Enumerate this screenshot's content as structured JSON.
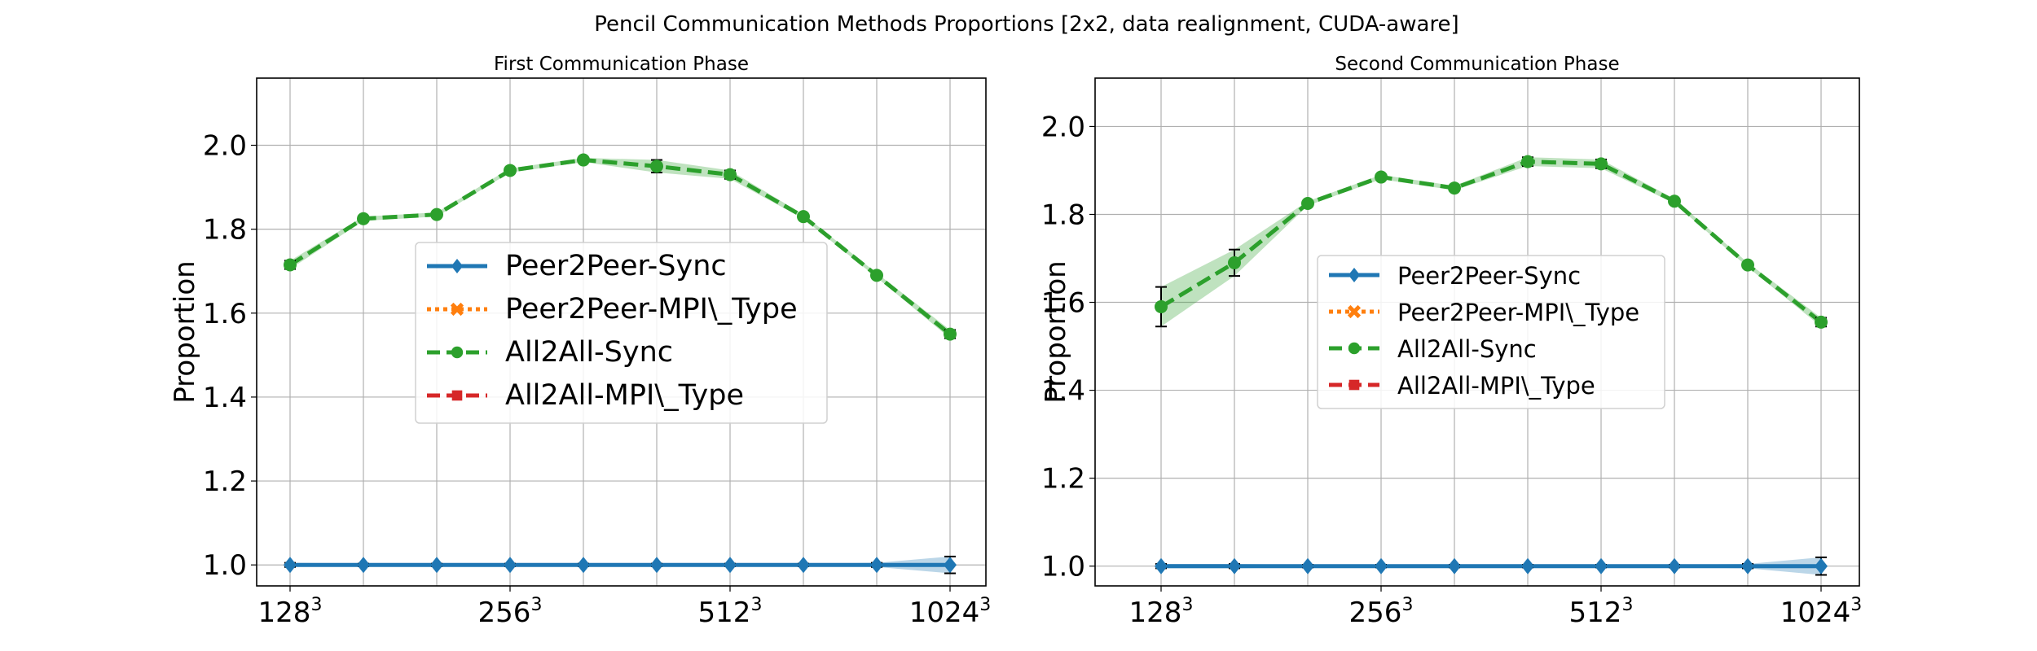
{
  "suptitle": "Pencil Communication Methods Proportions [2x2, data realignment, CUDA-aware]",
  "colors": {
    "peer2peer_sync": "#1f77b4",
    "peer2peer_mpi_type": "#ff7f0e",
    "all2all_sync": "#2ca02c",
    "all2all_mpi_type": "#d62728"
  },
  "chart_data": [
    {
      "type": "line",
      "title": "First Communication Phase",
      "ylabel": "Proportion",
      "xlabel": "",
      "ylim": [
        0.95,
        2.16
      ],
      "yticks": [
        "1.0",
        "1.2",
        "1.4",
        "1.6",
        "1.8",
        "2.0"
      ],
      "ytick_values": [
        1.0,
        1.2,
        1.4,
        1.6,
        1.8,
        2.0
      ],
      "grid": true,
      "legend_position": "center",
      "x_index": [
        0,
        1,
        2,
        3,
        4,
        5,
        6,
        7,
        8,
        9
      ],
      "xticks": [
        {
          "index": 0,
          "base": "128",
          "exp": "3"
        },
        {
          "index": 3,
          "base": "256",
          "exp": "3"
        },
        {
          "index": 6,
          "base": "512",
          "exp": "3"
        },
        {
          "index": 9,
          "base": "1024",
          "exp": "3"
        }
      ],
      "series": [
        {
          "name": "Peer2Peer-Sync",
          "key": "peer2peer_sync",
          "marker": "diamond",
          "dash": "solid",
          "values": [
            1.0,
            1.0,
            1.0,
            1.0,
            1.0,
            1.0,
            1.0,
            1.0,
            1.0,
            1.0
          ],
          "err": [
            0.005,
            0.003,
            0.003,
            0.003,
            0.003,
            0.003,
            0.003,
            0.003,
            0.005,
            0.02
          ]
        },
        {
          "name": "Peer2Peer-MPI\\_Type",
          "key": "peer2peer_mpi_type",
          "marker": "x",
          "dash": "dotted",
          "values": [],
          "err": []
        },
        {
          "name": "All2All-Sync",
          "key": "all2all_sync",
          "marker": "circle",
          "dash": "dashed",
          "values": [
            1.715,
            1.825,
            1.835,
            1.94,
            1.965,
            1.95,
            1.93,
            1.83,
            1.69,
            1.55
          ],
          "err": [
            0.01,
            0.005,
            0.005,
            0.005,
            0.005,
            0.015,
            0.01,
            0.005,
            0.005,
            0.01
          ]
        },
        {
          "name": "All2All-MPI\\_Type",
          "key": "all2all_mpi_type",
          "marker": "square",
          "dash": "dashed",
          "values": [],
          "err": []
        }
      ]
    },
    {
      "type": "line",
      "title": "Second Communication Phase",
      "ylabel": "Proportion",
      "xlabel": "",
      "ylim": [
        0.955,
        2.11
      ],
      "yticks": [
        "1.0",
        "1.2",
        "1.4",
        "1.6",
        "1.8",
        "2.0"
      ],
      "ytick_values": [
        1.0,
        1.2,
        1.4,
        1.6,
        1.8,
        2.0
      ],
      "grid": true,
      "legend_position": "center",
      "x_index": [
        0,
        1,
        2,
        3,
        4,
        5,
        6,
        7,
        8,
        9
      ],
      "xticks": [
        {
          "index": 0,
          "base": "128",
          "exp": "3"
        },
        {
          "index": 3,
          "base": "256",
          "exp": "3"
        },
        {
          "index": 6,
          "base": "512",
          "exp": "3"
        },
        {
          "index": 9,
          "base": "1024",
          "exp": "3"
        }
      ],
      "series": [
        {
          "name": "Peer2Peer-Sync",
          "key": "peer2peer_sync",
          "marker": "diamond",
          "dash": "solid",
          "values": [
            1.0,
            1.0,
            1.0,
            1.0,
            1.0,
            1.0,
            1.0,
            1.0,
            1.0,
            1.0
          ],
          "err": [
            0.005,
            0.005,
            0.003,
            0.003,
            0.003,
            0.003,
            0.003,
            0.003,
            0.005,
            0.02
          ]
        },
        {
          "name": "Peer2Peer-MPI\\_Type",
          "key": "peer2peer_mpi_type",
          "marker": "x",
          "dash": "dotted",
          "values": [],
          "err": []
        },
        {
          "name": "All2All-Sync",
          "key": "all2all_sync",
          "marker": "circle",
          "dash": "dashed",
          "values": [
            1.59,
            1.69,
            1.825,
            1.885,
            1.86,
            1.92,
            1.915,
            1.83,
            1.685,
            1.555
          ],
          "err": [
            0.045,
            0.03,
            0.005,
            0.005,
            0.005,
            0.01,
            0.01,
            0.005,
            0.005,
            0.01
          ]
        },
        {
          "name": "All2All-MPI\\_Type",
          "key": "all2all_mpi_type",
          "marker": "square",
          "dash": "dashed",
          "values": [],
          "err": []
        }
      ]
    }
  ]
}
